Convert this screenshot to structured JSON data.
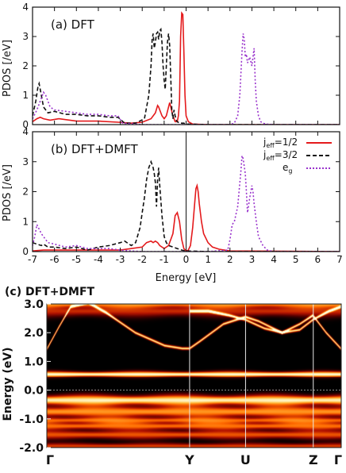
{
  "chart_data": [
    {
      "type": "line",
      "panel_label": "(a) DFT",
      "xlabel": "",
      "ylabel": "PDOS [/eV]",
      "xlim": [
        -7,
        7
      ],
      "ylim": [
        0,
        4
      ],
      "xticks": [
        -7,
        -6,
        -5,
        -4,
        -3,
        -2,
        -1,
        0,
        1,
        2,
        3,
        4,
        5,
        6,
        7
      ],
      "yticks": [
        0,
        1,
        2,
        3,
        4
      ],
      "grid": false,
      "series": [
        {
          "key": "jhalf",
          "color": "#e41a1c",
          "x": [
            -7,
            -6.8,
            -6.65,
            -6.5,
            -6.2,
            -5.8,
            -5,
            -4,
            -3.1,
            -2.5,
            -2,
            -1.6,
            -1.4,
            -1.3,
            -1.25,
            -1.2,
            -1.1,
            -1.0,
            -0.9,
            -0.8,
            -0.75,
            -0.7,
            -0.6,
            -0.5,
            -0.4,
            -0.35,
            -0.3,
            -0.25,
            -0.2,
            -0.15,
            -0.1,
            -0.05,
            0,
            0.1,
            0.3,
            1,
            7
          ],
          "y": [
            0.1,
            0.2,
            0.25,
            0.2,
            0.15,
            0.2,
            0.12,
            0.12,
            0.08,
            0.05,
            0.08,
            0.2,
            0.4,
            0.65,
            0.6,
            0.5,
            0.3,
            0.2,
            0.3,
            0.6,
            0.75,
            0.6,
            0.3,
            0.1,
            0.1,
            0.3,
            0.8,
            3.0,
            3.8,
            3.75,
            2.5,
            1.0,
            0.3,
            0.1,
            0.02,
            0,
            0
          ]
        },
        {
          "key": "jthreehalf",
          "color": "#111111",
          "x": [
            -7,
            -6.85,
            -6.75,
            -6.7,
            -6.6,
            -6.5,
            -6.3,
            -6.0,
            -5.5,
            -5,
            -4.5,
            -4,
            -3.5,
            -3.1,
            -2.8,
            -2.3,
            -1.9,
            -1.7,
            -1.6,
            -1.55,
            -1.5,
            -1.45,
            -1.4,
            -1.35,
            -1.3,
            -1.25,
            -1.2,
            -1.15,
            -1.1,
            -1.05,
            -1.0,
            -0.95,
            -0.9,
            -0.85,
            -0.8,
            -0.75,
            -0.7,
            -0.65,
            -0.6,
            -0.55,
            -0.5,
            -0.45,
            -0.4,
            -0.3,
            -0.2,
            -0.1,
            0,
            1,
            7
          ],
          "y": [
            0.3,
            0.8,
            1.3,
            1.4,
            1.0,
            0.6,
            0.4,
            0.45,
            0.35,
            0.35,
            0.3,
            0.3,
            0.25,
            0.25,
            0.05,
            0.05,
            0.2,
            1.0,
            2.0,
            2.9,
            3.1,
            2.6,
            2.8,
            3.1,
            3.15,
            2.9,
            3.2,
            3.25,
            2.8,
            2.0,
            1.5,
            1.2,
            2.0,
            2.8,
            3.1,
            2.7,
            1.6,
            0.5,
            0.2,
            0.5,
            0.3,
            0.15,
            0.1,
            0.05,
            0.05,
            0.05,
            0.02,
            0,
            0
          ]
        },
        {
          "key": "eg",
          "color": "#9933cc",
          "x": [
            -7,
            -6.8,
            -6.6,
            -6.5,
            -6.4,
            -6.2,
            -6.0,
            -5.5,
            -5,
            -4.5,
            -4,
            -3.5,
            -3.1,
            -2.9,
            -2,
            -1,
            0,
            1,
            2.0,
            2.2,
            2.35,
            2.45,
            2.55,
            2.6,
            2.65,
            2.7,
            2.75,
            2.8,
            2.9,
            3.0,
            3.05,
            3.1,
            3.15,
            3.2,
            3.3,
            3.4,
            3.6,
            4,
            7
          ],
          "y": [
            0.2,
            0.5,
            0.9,
            1.1,
            1.0,
            0.6,
            0.5,
            0.45,
            0.4,
            0.35,
            0.35,
            0.3,
            0.3,
            0.05,
            0,
            0,
            0,
            0,
            0,
            0.05,
            0.3,
            1.0,
            2.5,
            3.1,
            2.9,
            2.3,
            2.4,
            2.1,
            2.3,
            2.0,
            2.3,
            2.6,
            1.5,
            0.8,
            0.3,
            0.1,
            0.02,
            0,
            0
          ]
        }
      ]
    },
    {
      "type": "line",
      "panel_label": "(b) DFT+DMFT",
      "xlabel": "Energy [eV]",
      "ylabel": "PDOS [/eV]",
      "xlim": [
        -7,
        7
      ],
      "ylim": [
        0,
        4
      ],
      "xticks": [
        -7,
        -6,
        -5,
        -4,
        -3,
        -2,
        -1,
        0,
        1,
        2,
        3,
        4,
        5,
        6,
        7
      ],
      "yticks": [
        0,
        1,
        2,
        3,
        4
      ],
      "vline_x": 0,
      "grid": false,
      "legend_position": "top-right",
      "series": [
        {
          "key": "jhalf",
          "color": "#e41a1c",
          "x": [
            -7,
            -6.5,
            -6,
            -5,
            -4,
            -3,
            -2.5,
            -2,
            -1.8,
            -1.6,
            -1.5,
            -1.4,
            -1.3,
            -1.2,
            -1.0,
            -0.8,
            -0.6,
            -0.5,
            -0.4,
            -0.3,
            -0.2,
            -0.1,
            0,
            0.1,
            0.2,
            0.3,
            0.4,
            0.45,
            0.5,
            0.55,
            0.6,
            0.7,
            0.8,
            1.0,
            1.2,
            1.5,
            2.0,
            7
          ],
          "y": [
            0.02,
            0.05,
            0.05,
            0.05,
            0.05,
            0.05,
            0.1,
            0.15,
            0.3,
            0.35,
            0.3,
            0.35,
            0.3,
            0.2,
            0.1,
            0.2,
            0.6,
            1.2,
            1.3,
            1.0,
            0.4,
            0.1,
            0.02,
            0.05,
            0.2,
            0.8,
            1.7,
            2.1,
            2.2,
            2.0,
            1.6,
            1.0,
            0.6,
            0.3,
            0.15,
            0.08,
            0.02,
            0
          ]
        },
        {
          "key": "jthreehalf",
          "color": "#111111",
          "x": [
            -7,
            -6.8,
            -6.6,
            -6.5,
            -6.3,
            -6,
            -5.5,
            -5,
            -4.5,
            -4,
            -3.5,
            -3,
            -2.8,
            -2.5,
            -2.3,
            -2.1,
            -2.0,
            -1.9,
            -1.8,
            -1.7,
            -1.6,
            -1.55,
            -1.5,
            -1.45,
            -1.4,
            -1.35,
            -1.3,
            -1.25,
            -1.2,
            -1.1,
            -1.0,
            -0.9,
            -0.8,
            -0.6,
            -0.4,
            -0.2,
            0,
            0.5,
            1,
            7
          ],
          "y": [
            0.3,
            0.25,
            0.2,
            0.25,
            0.15,
            0.15,
            0.1,
            0.15,
            0.05,
            0.15,
            0.2,
            0.3,
            0.35,
            0.2,
            0.3,
            0.8,
            1.3,
            1.8,
            2.4,
            2.8,
            3.0,
            2.9,
            2.8,
            2.6,
            2.3,
            1.5,
            2.4,
            2.8,
            2.2,
            1.2,
            0.5,
            0.3,
            0.2,
            0.15,
            0.1,
            0.05,
            0.02,
            0.01,
            0,
            0
          ]
        },
        {
          "key": "eg",
          "color": "#9933cc",
          "x": [
            -7,
            -6.9,
            -6.8,
            -6.6,
            -6.5,
            -6.3,
            -6,
            -5.5,
            -5,
            -4.5,
            -4,
            -3.5,
            -3,
            -2.5,
            -2,
            -1,
            0,
            1,
            1.9,
            2.0,
            2.1,
            2.2,
            2.35,
            2.5,
            2.55,
            2.6,
            2.7,
            2.75,
            2.8,
            2.9,
            3.0,
            3.05,
            3.1,
            3.2,
            3.3,
            3.5,
            3.7,
            4,
            7
          ],
          "y": [
            0.2,
            0.5,
            0.9,
            0.6,
            0.5,
            0.3,
            0.25,
            0.15,
            0.2,
            0.1,
            0.1,
            0.1,
            0.05,
            0.02,
            0,
            0,
            0,
            0,
            0.05,
            0.4,
            0.9,
            1.0,
            1.5,
            2.7,
            3.2,
            3.1,
            2.6,
            2.0,
            1.3,
            1.8,
            2.2,
            2.0,
            1.6,
            1.0,
            0.5,
            0.2,
            0.05,
            0,
            0
          ]
        }
      ]
    },
    {
      "type": "heatmap",
      "panel_label": "(c) DFT+DMFT",
      "xlabel": "",
      "ylabel": "Energy (eV)",
      "ylim": [
        -2.0,
        3.0
      ],
      "yticks": [
        -2.0,
        -1.0,
        0.0,
        1.0,
        2.0,
        3.0
      ],
      "ytick_labels": [
        "-2.0",
        "-1.0",
        "0.0",
        "1.0",
        "2.0",
        "3.0"
      ],
      "kpath": {
        "labels": [
          "Γ",
          "Y",
          "U",
          "Z",
          "Γ"
        ],
        "positions": [
          0,
          0.485,
          0.675,
          0.905,
          1.0
        ]
      },
      "fermi_level": 0.0,
      "colormap": [
        "#000000",
        "#5a0000",
        "#b41400",
        "#ff6a00",
        "#ffc040",
        "#ffffe0"
      ],
      "flat_bands": [
        {
          "energy": 0.55,
          "width": 0.09,
          "intensity": 1.0
        },
        {
          "energy": -0.35,
          "width": 0.16,
          "intensity": 0.95
        },
        {
          "energy": -0.75,
          "width": 0.18,
          "intensity": 0.7
        },
        {
          "energy": -1.05,
          "width": 0.1,
          "intensity": 0.55
        },
        {
          "energy": -1.25,
          "width": 0.12,
          "intensity": 0.6
        },
        {
          "energy": -1.55,
          "width": 0.14,
          "intensity": 0.55
        },
        {
          "energy": -1.95,
          "width": 0.1,
          "intensity": 0.5
        },
        {
          "energy": 2.75,
          "width": 0.18,
          "intensity": 0.45
        },
        {
          "energy": 3.0,
          "width": 0.12,
          "intensity": 0.6
        }
      ],
      "dispersive_bands": [
        {
          "k": [
            0,
            0.04,
            0.08,
            0.14,
            0.2,
            0.3,
            0.4,
            0.46,
            0.485,
            0.52,
            0.6,
            0.675,
            0.72,
            0.8,
            0.86,
            0.905,
            0.95,
            1.0
          ],
          "e": [
            1.45,
            2.2,
            2.9,
            3.05,
            2.7,
            2.0,
            1.55,
            1.45,
            1.45,
            1.7,
            2.3,
            2.55,
            2.4,
            2.0,
            2.3,
            2.6,
            2.0,
            1.45
          ]
        },
        {
          "k": [
            0.485,
            0.55,
            0.62,
            0.675,
            0.74,
            0.8,
            0.86,
            0.905,
            0.96,
            1.0
          ],
          "e": [
            2.75,
            2.75,
            2.6,
            2.45,
            2.15,
            2.0,
            2.1,
            2.45,
            2.75,
            2.9
          ]
        }
      ]
    }
  ],
  "legend": {
    "entries": [
      {
        "key": "jhalf",
        "main": "j",
        "sub": "eff",
        "rest": "=1/2",
        "color": "#e41a1c",
        "style": "solid"
      },
      {
        "key": "jthreehalf",
        "main": "j",
        "sub": "eff",
        "rest": "=3/2",
        "color": "#111111",
        "style": "dashed"
      },
      {
        "key": "eg",
        "main": "e",
        "sub": "g",
        "rest": "",
        "color": "#9933cc",
        "style": "dotted"
      }
    ]
  }
}
